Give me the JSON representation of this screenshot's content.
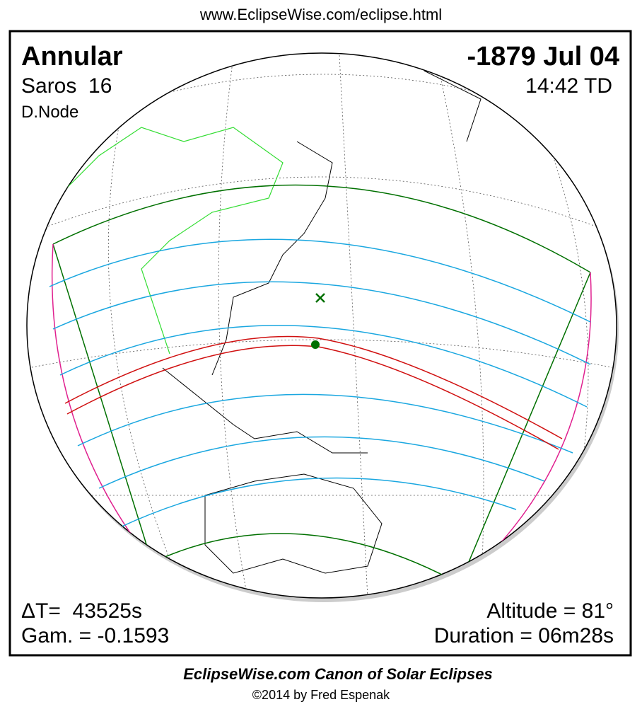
{
  "header": {
    "url": "www.EclipseWise.com/eclipse.html"
  },
  "map": {
    "eclipse_type": "Annular",
    "date": "-1879 Jul 04",
    "saros": "Saros  16",
    "time": "14:42 TD",
    "node": "D.Node",
    "delta_t": "ΔT=  43525s",
    "gamma": "Gam. = -0.1593",
    "altitude": "Altitude = 81°",
    "duration": "Duration = 06m28s"
  },
  "footer": {
    "title": "EclipseWise.com Canon of Solar Eclipses",
    "copyright": "©2014 by Fred Espenak"
  }
}
